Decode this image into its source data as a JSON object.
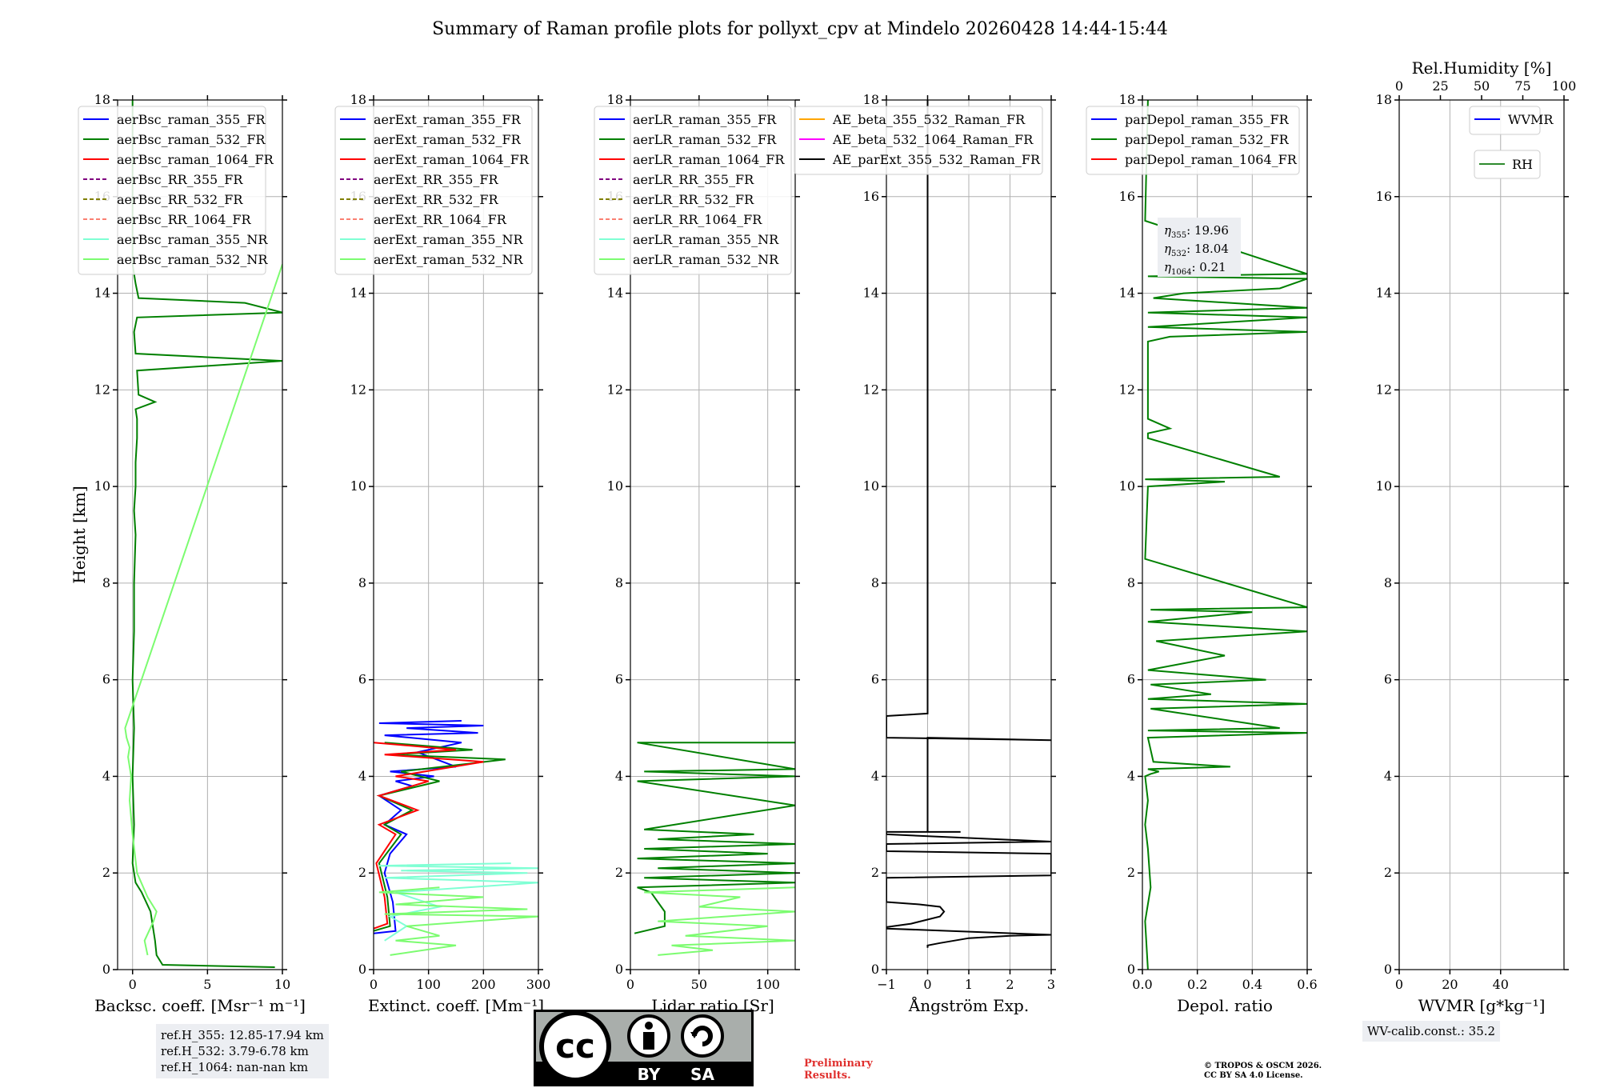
{
  "figure": {
    "title": "Summary of Raman profile plots for pollyxt_cpv at Mindelo 20260428 14:44-15:44"
  },
  "colors": {
    "blue": "#0000ff",
    "green": "#008000",
    "red": "#ff0000",
    "purple": "#800080",
    "olive": "#808000",
    "salmon": "#fa8072",
    "cyan": "#7fffd4",
    "lightgreen": "#7cfc70",
    "orange": "#ffa500",
    "magenta": "#ff00ff",
    "black": "#000000",
    "rhgreen": "#2e8b2e"
  },
  "chart_data": [
    {
      "type": "line",
      "id": "bsc",
      "xlabel": "Backsc. coeff. [Msr⁻¹ m⁻¹]",
      "ylabel": "Height [km]",
      "xlim": [
        -1,
        10
      ],
      "ylim": [
        0,
        18
      ],
      "xticks": [
        0,
        5,
        10
      ],
      "xtick_labels": [
        "0",
        "5",
        "10"
      ],
      "yticks": [
        0,
        2,
        4,
        6,
        8,
        10,
        12,
        14,
        16,
        18
      ],
      "legend": [
        "aerBsc_raman_355_FR",
        "aerBsc_raman_532_FR",
        "aerBsc_raman_1064_FR",
        "aerBsc_RR_355_FR",
        "aerBsc_RR_532_FR",
        "aerBsc_RR_1064_FR",
        "aerBsc_raman_355_NR",
        "aerBsc_raman_532_NR"
      ],
      "legend_colors": [
        "blue",
        "green",
        "red",
        "purple",
        "olive",
        "salmon",
        "cyan",
        "lightgreen"
      ],
      "legend_dashed": [
        false,
        false,
        false,
        true,
        true,
        true,
        false,
        false
      ],
      "series": [
        {
          "name": "aerBsc_raman_532_FR",
          "color": "green",
          "x": [
            9.5,
            2.0,
            1.6,
            1.5,
            1.4,
            1.2,
            0.6,
            0.2,
            0.0,
            0.1,
            0.0,
            0.1,
            0.0,
            0.1,
            0.1,
            0.2,
            0.1,
            0.2,
            0.2,
            0.3,
            0.3,
            0.2,
            1.5,
            0.4,
            0.3,
            10,
            0.2,
            0.1,
            0.3,
            10,
            7.5,
            0.4,
            0.2,
            0.0,
            0.0,
            0.0
          ],
          "y": [
            0.05,
            0.1,
            0.3,
            0.6,
            0.8,
            1.2,
            1.6,
            1.8,
            2.2,
            3.0,
            4.0,
            5.0,
            6.0,
            7.0,
            8.0,
            9.0,
            9.5,
            10.0,
            10.5,
            11.0,
            11.4,
            11.6,
            11.75,
            11.9,
            12.4,
            12.6,
            12.75,
            13.2,
            13.5,
            13.6,
            13.8,
            13.9,
            14.2,
            14.6,
            16.5,
            18.0
          ]
        },
        {
          "name": "aerBsc_raman_532_NR",
          "color": "lightgreen",
          "x": [
            1.0,
            0.8,
            1.4,
            1.6,
            1.0,
            0.3,
            0.0,
            -0.2,
            -0.1,
            -0.3,
            -0.2,
            -0.4,
            -0.5,
            10
          ],
          "y": [
            0.3,
            0.6,
            1.0,
            1.2,
            1.5,
            2.0,
            2.8,
            3.5,
            4.0,
            4.4,
            4.6,
            4.8,
            5.0,
            14.6
          ]
        }
      ]
    },
    {
      "type": "line",
      "id": "ext",
      "xlabel": "Extinct. coeff. [Mm⁻¹]",
      "ylabel": "",
      "xlim": [
        0,
        300
      ],
      "ylim": [
        0,
        18
      ],
      "xticks": [
        0,
        100,
        200,
        300
      ],
      "xtick_labels": [
        "0",
        "100",
        "200",
        "300"
      ],
      "yticks": [
        0,
        2,
        4,
        6,
        8,
        10,
        12,
        14,
        16,
        18
      ],
      "legend": [
        "aerExt_raman_355_FR",
        "aerExt_raman_532_FR",
        "aerExt_raman_1064_FR",
        "aerExt_RR_355_FR",
        "aerExt_RR_532_FR",
        "aerExt_RR_1064_FR",
        "aerExt_raman_355_NR",
        "aerExt_raman_532_NR"
      ],
      "legend_colors": [
        "blue",
        "green",
        "red",
        "purple",
        "olive",
        "salmon",
        "cyan",
        "lightgreen"
      ],
      "legend_dashed": [
        false,
        false,
        false,
        true,
        true,
        true,
        false,
        false
      ],
      "series": [
        {
          "name": "aerExt_raman_355_FR",
          "color": "blue",
          "x": [
            0,
            40,
            35,
            20,
            30,
            60,
            20,
            50,
            10,
            70,
            40,
            110,
            30,
            150,
            80,
            160,
            20,
            190,
            60,
            200,
            10,
            160
          ],
          "y": [
            0.75,
            0.8,
            1.4,
            2.0,
            2.4,
            2.8,
            3.0,
            3.3,
            3.6,
            3.8,
            3.9,
            4.0,
            4.1,
            4.2,
            4.5,
            4.7,
            4.85,
            4.9,
            5.0,
            5.05,
            5.1,
            5.15
          ]
        },
        {
          "name": "aerExt_raman_532_FR",
          "color": "green",
          "x": [
            0,
            30,
            25,
            10,
            50,
            20,
            70,
            10,
            120,
            50,
            240,
            30,
            180,
            20
          ],
          "y": [
            0.8,
            0.9,
            1.5,
            2.2,
            2.8,
            3.0,
            3.3,
            3.6,
            3.9,
            4.1,
            4.35,
            4.45,
            4.55,
            4.7
          ]
        },
        {
          "name": "aerExt_raman_1064_FR",
          "color": "red",
          "x": [
            0,
            25,
            20,
            5,
            40,
            10,
            80,
            10,
            100,
            40,
            200,
            20,
            150,
            0
          ],
          "y": [
            0.85,
            0.95,
            1.5,
            2.2,
            2.8,
            3.0,
            3.3,
            3.6,
            3.9,
            4.0,
            4.3,
            4.45,
            4.55,
            4.7
          ]
        },
        {
          "name": "aerExt_raman_355_NR",
          "color": "cyan",
          "x": [
            20,
            60,
            30,
            120,
            40,
            300,
            20,
            280,
            50,
            300,
            10,
            250
          ],
          "y": [
            0.6,
            0.9,
            1.1,
            1.3,
            1.6,
            1.8,
            1.9,
            2.0,
            2.05,
            2.1,
            2.15,
            2.2
          ]
        },
        {
          "name": "aerExt_raman_532_NR",
          "color": "lightgreen",
          "x": [
            30,
            150,
            40,
            120,
            60,
            300,
            20,
            280,
            40,
            200,
            10,
            120
          ],
          "y": [
            0.3,
            0.5,
            0.6,
            0.7,
            0.9,
            1.1,
            1.15,
            1.25,
            1.35,
            1.5,
            1.6,
            1.7
          ]
        }
      ]
    },
    {
      "type": "line",
      "id": "lr",
      "xlabel": "Lidar ratio [Sr]",
      "ylabel": "",
      "xlim": [
        0,
        120
      ],
      "ylim": [
        0,
        18
      ],
      "xticks": [
        0,
        50,
        100
      ],
      "xtick_labels": [
        "0",
        "50",
        "100"
      ],
      "yticks": [
        0,
        2,
        4,
        6,
        8,
        10,
        12,
        14,
        16,
        18
      ],
      "legend": [
        "aerLR_raman_355_FR",
        "aerLR_raman_532_FR",
        "aerLR_raman_1064_FR",
        "aerLR_RR_355_FR",
        "aerLR_RR_532_FR",
        "aerLR_RR_1064_FR",
        "aerLR_raman_355_NR",
        "aerLR_raman_532_NR"
      ],
      "legend_colors": [
        "blue",
        "green",
        "red",
        "purple",
        "olive",
        "salmon",
        "cyan",
        "lightgreen"
      ],
      "legend_dashed": [
        false,
        false,
        false,
        true,
        true,
        true,
        false,
        false
      ],
      "series": [
        {
          "name": "aerLR_raman_532_FR",
          "color": "green",
          "x": [
            3,
            25,
            25,
            20,
            15,
            5,
            120,
            10,
            120,
            20,
            120,
            5,
            100,
            10,
            120,
            20,
            90,
            10,
            120,
            5,
            120,
            10,
            120,
            5,
            120
          ],
          "y": [
            0.75,
            0.9,
            1.2,
            1.4,
            1.6,
            1.7,
            1.8,
            1.9,
            2.0,
            2.1,
            2.2,
            2.3,
            2.4,
            2.5,
            2.6,
            2.7,
            2.8,
            2.9,
            3.4,
            3.9,
            4.0,
            4.1,
            4.15,
            4.7,
            4.7
          ]
        },
        {
          "name": "aerLR_raman_532_NR",
          "color": "lightgreen",
          "x": [
            20,
            60,
            30,
            120,
            40,
            100,
            20,
            120,
            50,
            80,
            10,
            120
          ],
          "y": [
            0.3,
            0.4,
            0.5,
            0.6,
            0.7,
            0.9,
            1.0,
            1.2,
            1.3,
            1.5,
            1.6,
            1.7
          ]
        }
      ]
    },
    {
      "type": "line",
      "id": "ae",
      "xlabel": "Ångström Exp.",
      "ylabel": "",
      "xlim": [
        -1,
        3
      ],
      "ylim": [
        0,
        18
      ],
      "xticks": [
        -1,
        0,
        1,
        2,
        3
      ],
      "xtick_labels": [
        "−1",
        "0",
        "1",
        "2",
        "3"
      ],
      "yticks": [
        0,
        2,
        4,
        6,
        8,
        10,
        12,
        14,
        16,
        18
      ],
      "legend": [
        "AE_beta_355_532_Raman_FR",
        "AE_beta_532_1064_Raman_FR",
        "AE_parExt_355_532_Raman_FR"
      ],
      "legend_colors": [
        "orange",
        "magenta",
        "black"
      ],
      "legend_dashed": [
        false,
        false,
        false
      ],
      "series": [
        {
          "name": "AE_parExt_355_532_Raman_FR",
          "color": "black",
          "x": [
            0,
            0,
            0.3,
            1.0,
            2.0,
            3.0,
            3.0,
            -1,
            -1,
            -0.4,
            0.3,
            0.4,
            0.3,
            -0.2,
            -1,
            -1,
            3,
            3,
            -1,
            -1,
            3,
            3,
            -1,
            -1,
            0.8,
            0,
            0,
            3,
            3,
            -1,
            -1,
            0,
            0,
            0
          ],
          "y": [
            0.45,
            0.5,
            0.55,
            0.65,
            0.7,
            0.72,
            0.72,
            0.85,
            0.88,
            0.95,
            1.1,
            1.2,
            1.3,
            1.35,
            1.4,
            1.9,
            1.95,
            2.4,
            2.45,
            2.6,
            2.65,
            2.65,
            2.8,
            2.85,
            2.85,
            2.85,
            4.8,
            4.75,
            4.75,
            4.8,
            5.25,
            5.3,
            16.0,
            18.0
          ]
        }
      ]
    },
    {
      "type": "line",
      "id": "depol",
      "xlabel": "Depol. ratio",
      "ylabel": "",
      "xlim": [
        0,
        0.6
      ],
      "ylim": [
        0,
        18
      ],
      "xticks": [
        0,
        0.2,
        0.4,
        0.6
      ],
      "xtick_labels": [
        "0.0",
        "0.2",
        "0.4",
        "0.6"
      ],
      "yticks": [
        0,
        2,
        4,
        6,
        8,
        10,
        12,
        14,
        16,
        18
      ],
      "legend": [
        "parDepol_raman_355_FR",
        "parDepol_raman_532_FR",
        "parDepol_raman_1064_FR"
      ],
      "legend_colors": [
        "blue",
        "green",
        "red"
      ],
      "legend_dashed": [
        false,
        false,
        false
      ],
      "series": [
        {
          "name": "parDepol_raman_532_FR",
          "color": "green",
          "x": [
            0.02,
            0.01,
            0.03,
            0.02,
            0.01,
            0.02,
            0.01,
            0.03,
            0.06,
            0.02,
            0.32,
            0.04,
            0.02,
            0.6,
            0.02,
            0.5,
            0.03,
            0.6,
            0.02,
            0.25,
            0.03,
            0.45,
            0.02,
            0.3,
            0.05,
            0.6,
            0.02,
            0.4,
            0.03,
            0.6,
            0.01,
            0.02,
            0.3,
            0.01,
            0.5,
            0.02,
            0.02,
            0.1,
            0.02,
            0.02,
            0.1,
            0.6,
            0.02,
            0.6,
            0.02,
            0.6,
            0.04,
            0.15,
            0.5,
            0.6,
            0.02,
            0.6,
            0.01,
            0.02
          ],
          "y": [
            0.0,
            1.0,
            1.7,
            2.5,
            3.0,
            3.5,
            4.0,
            4.05,
            4.1,
            4.15,
            4.2,
            4.3,
            4.8,
            4.9,
            4.95,
            5.0,
            5.4,
            5.5,
            5.6,
            5.7,
            5.9,
            6.0,
            6.2,
            6.5,
            6.8,
            7.0,
            7.2,
            7.4,
            7.45,
            7.5,
            8.5,
            10.0,
            10.1,
            10.15,
            10.2,
            11.0,
            11.1,
            11.2,
            11.4,
            13.0,
            13.1,
            13.2,
            13.3,
            13.5,
            13.6,
            13.7,
            13.9,
            14.0,
            14.1,
            14.3,
            14.35,
            14.4,
            15.5,
            18.0
          ]
        }
      ]
    },
    {
      "type": "line",
      "id": "wv",
      "xlabel": "WVMR [g*kg⁻¹]",
      "ylabel": "",
      "xlim": [
        0,
        65
      ],
      "ylim": [
        0,
        18
      ],
      "xticks": [
        0,
        20,
        40
      ],
      "xtick_labels": [
        "0",
        "20",
        "40"
      ],
      "yticks": [
        0,
        2,
        4,
        6,
        8,
        10,
        12,
        14,
        16,
        18
      ],
      "top_xlabel": "Rel.Humidity [%]",
      "top_xlim": [
        0,
        100
      ],
      "top_xticks": [
        0,
        25,
        50,
        75,
        100
      ],
      "top_xtick_labels": [
        "0",
        "25",
        "50",
        "75",
        "100"
      ],
      "legend": [
        "WVMR"
      ],
      "legend_colors": [
        "blue"
      ],
      "legend_dashed": [
        false
      ],
      "legend2": [
        "RH"
      ],
      "legend2_colors": [
        "rhgreen"
      ],
      "series": []
    }
  ],
  "annotations": {
    "ref_heights": "ref.H_355: 12.85-17.94 km\nref.H_532: 3.79-6.78 km\nref.H_1064: nan-nan km",
    "eta_355_label": "η",
    "eta_355_sub": "355",
    "eta_355_value": ": 19.96",
    "eta_532_sub": "532",
    "eta_532_value": ": 18.04",
    "eta_1064_sub": "1064",
    "eta_1064_value": ": 0.21",
    "preliminary": "Preliminary\nResults.",
    "copyright": "© TROPOS & OSCM 2026.\nCC BY SA 4.0 License.",
    "wv_calib": "WV-calib.const.: 35.2",
    "cc_by": "BY",
    "cc_sa": "SA",
    "cc_logo": "cc"
  }
}
